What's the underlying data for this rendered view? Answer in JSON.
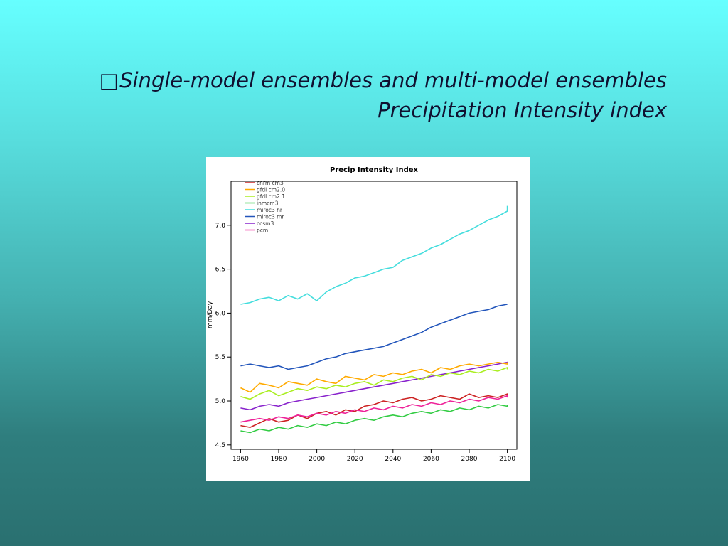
{
  "slide": {
    "bullet": "□",
    "title_line1": "Single-model ensembles and multi-model ensembles",
    "title_line2": "Precipitation Intensity index"
  },
  "chart_data": {
    "type": "line",
    "title": "Precip Intensity Index",
    "xlabel": "",
    "ylabel": "mm/Day",
    "xlim": [
      1955,
      2105
    ],
    "ylim": [
      4.45,
      7.5
    ],
    "xticks": [
      1960,
      1980,
      2000,
      2020,
      2040,
      2060,
      2080,
      2100
    ],
    "yticks": [
      4.5,
      5.0,
      5.5,
      6.0,
      6.5,
      7.0
    ],
    "ytick_labels": [
      "4.5",
      "5.0",
      "5.5",
      "6.0",
      "6.5",
      "7.0"
    ],
    "grid": false,
    "legend_position": "top-left",
    "series": [
      {
        "name": "cnrm cm3",
        "color": "#cc2222",
        "values": [
          4.72,
          4.7,
          4.75,
          4.8,
          4.76,
          4.78,
          4.84,
          4.8,
          4.86,
          4.88,
          4.84,
          4.9,
          4.88,
          4.94,
          4.96,
          5.0,
          4.98,
          5.02,
          5.04,
          5.0,
          5.02,
          5.06,
          5.04,
          5.02,
          5.08,
          5.04,
          5.06,
          5.04,
          5.08,
          5.06
        ]
      },
      {
        "name": "gfdl cm2.0",
        "color": "#ffaa00",
        "values": [
          5.15,
          5.1,
          5.2,
          5.18,
          5.15,
          5.22,
          5.2,
          5.18,
          5.25,
          5.22,
          5.2,
          5.28,
          5.26,
          5.24,
          5.3,
          5.28,
          5.32,
          5.3,
          5.34,
          5.36,
          5.32,
          5.38,
          5.36,
          5.4,
          5.42,
          5.4,
          5.42,
          5.44,
          5.42,
          5.44
        ]
      },
      {
        "name": "gfdl cm2.1",
        "color": "#aaee22",
        "values": [
          5.05,
          5.02,
          5.08,
          5.12,
          5.06,
          5.1,
          5.14,
          5.12,
          5.16,
          5.14,
          5.18,
          5.16,
          5.2,
          5.22,
          5.18,
          5.24,
          5.22,
          5.26,
          5.28,
          5.24,
          5.3,
          5.28,
          5.32,
          5.3,
          5.34,
          5.32,
          5.36,
          5.34,
          5.38,
          5.36
        ]
      },
      {
        "name": "inmcm3",
        "color": "#33cc44",
        "values": [
          4.66,
          4.64,
          4.68,
          4.66,
          4.7,
          4.68,
          4.72,
          4.7,
          4.74,
          4.72,
          4.76,
          4.74,
          4.78,
          4.8,
          4.78,
          4.82,
          4.84,
          4.82,
          4.86,
          4.88,
          4.86,
          4.9,
          4.88,
          4.92,
          4.9,
          4.94,
          4.92,
          4.96,
          4.94,
          4.96
        ]
      },
      {
        "name": "miroc3 hr",
        "color": "#44dddd",
        "values": [
          6.1,
          6.12,
          6.16,
          6.18,
          6.14,
          6.2,
          6.16,
          6.22,
          6.14,
          6.24,
          6.3,
          6.34,
          6.4,
          6.42,
          6.46,
          6.5,
          6.52,
          6.6,
          6.64,
          6.68,
          6.74,
          6.78,
          6.84,
          6.9,
          6.94,
          7.0,
          7.06,
          7.1,
          7.16,
          7.22
        ]
      },
      {
        "name": "miroc3 mr",
        "color": "#2255bb",
        "values": [
          5.4,
          5.42,
          5.4,
          5.38,
          5.4,
          5.36,
          5.38,
          5.4,
          5.44,
          5.48,
          5.5,
          5.54,
          5.56,
          5.58,
          5.6,
          5.62,
          5.66,
          5.7,
          5.74,
          5.78,
          5.84,
          5.88,
          5.92,
          5.96,
          6.0,
          6.02,
          6.04,
          6.08,
          6.1,
          6.1
        ]
      },
      {
        "name": "ccsm3",
        "color": "#8822cc",
        "values": [
          4.92,
          4.9,
          4.94,
          4.96,
          4.94,
          4.98,
          5.0,
          5.02,
          5.04,
          5.06,
          5.08,
          5.1,
          5.12,
          5.14,
          5.16,
          5.18,
          5.2,
          5.22,
          5.24,
          5.26,
          5.28,
          5.3,
          5.32,
          5.34,
          5.36,
          5.38,
          5.4,
          5.42,
          5.44,
          5.42
        ]
      },
      {
        "name": "pcm",
        "color": "#ee2299",
        "values": [
          4.76,
          4.78,
          4.8,
          4.78,
          4.82,
          4.8,
          4.84,
          4.82,
          4.86,
          4.84,
          4.88,
          4.86,
          4.9,
          4.88,
          4.92,
          4.9,
          4.94,
          4.92,
          4.96,
          4.94,
          4.98,
          4.96,
          5.0,
          4.98,
          5.02,
          5.0,
          5.04,
          5.02,
          5.06,
          5.04
        ]
      }
    ],
    "x": [
      1960,
      1965,
      1970,
      1975,
      1980,
      1985,
      1990,
      1995,
      2000,
      2005,
      2010,
      2015,
      2020,
      2025,
      2030,
      2035,
      2040,
      2045,
      2050,
      2055,
      2060,
      2065,
      2070,
      2075,
      2080,
      2085,
      2090,
      2095,
      2100,
      2100
    ]
  }
}
